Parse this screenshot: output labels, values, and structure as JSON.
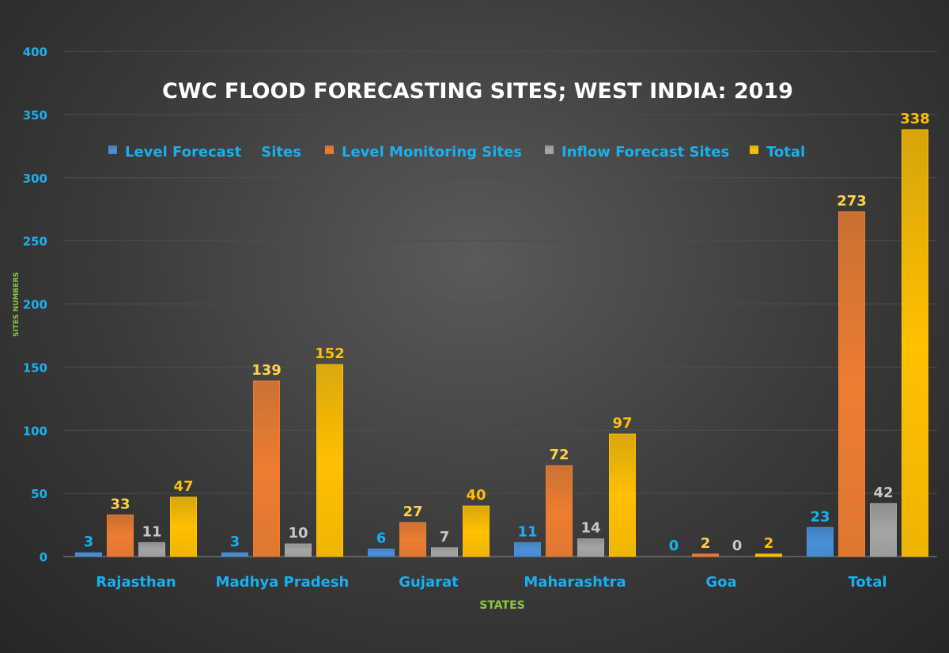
{
  "chart_data": {
    "type": "bar",
    "title": "CWC FLOOD FORECASTING SITES; WEST INDIA: 2019",
    "xlabel": "STATES",
    "ylabel": "SITES NUMBERS",
    "categories": [
      "Rajasthan",
      "Madhya Pradesh",
      "Gujarat",
      "Maharashtra",
      "Goa",
      "Total"
    ],
    "series": [
      {
        "name": "Level Forecast    Sites",
        "values": [
          3,
          3,
          6,
          11,
          0,
          23
        ],
        "color": "#4a90d9",
        "label_color": "#1ab0f0"
      },
      {
        "name": "Level Monitoring Sites",
        "values": [
          33,
          139,
          27,
          72,
          2,
          273
        ],
        "color": "#ed7d31",
        "label_color": "#ffd24a"
      },
      {
        "name": "Inflow Forecast Sites",
        "values": [
          11,
          10,
          7,
          14,
          0,
          42
        ],
        "color": "#a5a5a5",
        "label_color": "#c8c8c8"
      },
      {
        "name": "Total",
        "values": [
          47,
          152,
          40,
          97,
          2,
          338
        ],
        "color": "#ffc000",
        "label_color": "#ffc000"
      }
    ],
    "ylim": [
      0,
      400
    ],
    "yticks": [
      0,
      50,
      100,
      150,
      200,
      250,
      300,
      350,
      400
    ],
    "grid": true,
    "legend": "top",
    "colors": {
      "tick_labels": "#1ab0f0",
      "axis_titles": "#8dc63f",
      "title": "#ffffff"
    }
  }
}
